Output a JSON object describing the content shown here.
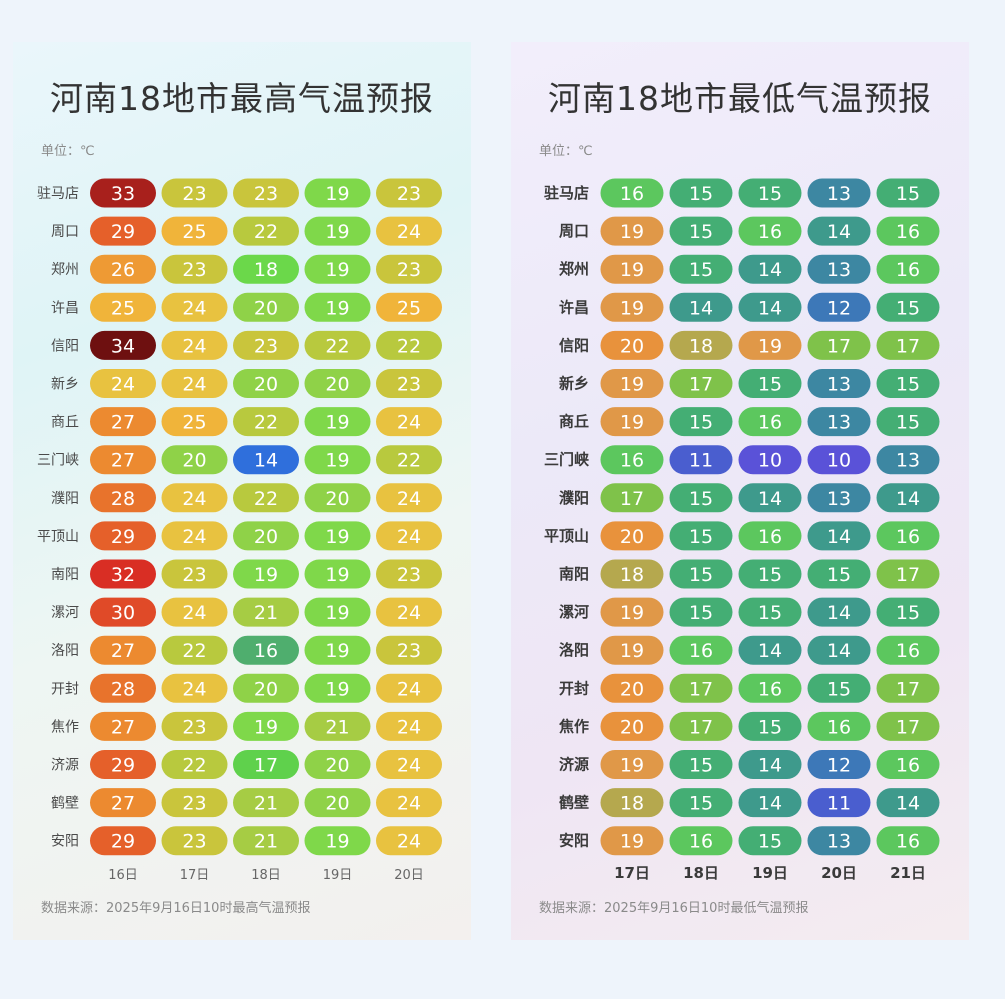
{
  "unit_label": "单位：℃",
  "chart_data": [
    {
      "type": "table",
      "title": "河南18地市最高气温预报",
      "source": "数据来源：2025年9月16日10时最高气温预报",
      "rows": [
        "驻马店",
        "周口",
        "郑州",
        "许昌",
        "信阳",
        "新乡",
        "商丘",
        "三门峡",
        "濮阳",
        "平顶山",
        "南阳",
        "漯河",
        "洛阳",
        "开封",
        "焦作",
        "济源",
        "鹤壁",
        "安阳"
      ],
      "columns": [
        "16日",
        "17日",
        "18日",
        "19日",
        "20日"
      ],
      "values": [
        [
          33,
          23,
          23,
          19,
          23
        ],
        [
          29,
          25,
          22,
          19,
          24
        ],
        [
          26,
          23,
          18,
          19,
          23
        ],
        [
          25,
          24,
          20,
          19,
          25
        ],
        [
          34,
          24,
          23,
          22,
          22
        ],
        [
          24,
          24,
          20,
          20,
          23
        ],
        [
          27,
          25,
          22,
          19,
          24
        ],
        [
          27,
          20,
          14,
          19,
          22
        ],
        [
          28,
          24,
          22,
          20,
          24
        ],
        [
          29,
          24,
          20,
          19,
          24
        ],
        [
          32,
          23,
          19,
          19,
          23
        ],
        [
          30,
          24,
          21,
          19,
          24
        ],
        [
          27,
          22,
          16,
          19,
          23
        ],
        [
          28,
          24,
          20,
          19,
          24
        ],
        [
          27,
          23,
          19,
          21,
          24
        ],
        [
          29,
          22,
          17,
          20,
          24
        ],
        [
          27,
          23,
          21,
          20,
          24
        ],
        [
          29,
          23,
          21,
          19,
          24
        ]
      ],
      "color_scale": {
        "14": "#2f6fdc",
        "16": "#4fae6e",
        "17": "#5fd14c",
        "18": "#6bd84a",
        "19": "#7fd84a",
        "20": "#8fd248",
        "21": "#a6cc44",
        "22": "#b8c93e",
        "23": "#c9c53c",
        "24": "#e8c240",
        "25": "#f0b43a",
        "26": "#ee9a34",
        "27": "#ec8a30",
        "28": "#e8732c",
        "29": "#e5602a",
        "30": "#e04a28",
        "32": "#d92e24",
        "33": "#a8201c",
        "34": "#6e1010"
      }
    },
    {
      "type": "table",
      "title": "河南18地市最低气温预报",
      "source": "数据来源：2025年9月16日10时最低气温预报",
      "rows": [
        "驻马店",
        "周口",
        "郑州",
        "许昌",
        "信阳",
        "新乡",
        "商丘",
        "三门峡",
        "濮阳",
        "平顶山",
        "南阳",
        "漯河",
        "洛阳",
        "开封",
        "焦作",
        "济源",
        "鹤壁",
        "安阳"
      ],
      "columns": [
        "17日",
        "18日",
        "19日",
        "20日",
        "21日"
      ],
      "values": [
        [
          16,
          15,
          15,
          13,
          15
        ],
        [
          19,
          15,
          16,
          14,
          16
        ],
        [
          19,
          15,
          14,
          13,
          16
        ],
        [
          19,
          14,
          14,
          12,
          15
        ],
        [
          20,
          18,
          19,
          17,
          17
        ],
        [
          19,
          17,
          15,
          13,
          15
        ],
        [
          19,
          15,
          16,
          13,
          15
        ],
        [
          16,
          11,
          10,
          10,
          13
        ],
        [
          17,
          15,
          14,
          13,
          14
        ],
        [
          20,
          15,
          16,
          14,
          16
        ],
        [
          18,
          15,
          15,
          15,
          17
        ],
        [
          19,
          15,
          15,
          14,
          15
        ],
        [
          19,
          16,
          14,
          14,
          16
        ],
        [
          20,
          17,
          16,
          15,
          17
        ],
        [
          20,
          17,
          15,
          16,
          17
        ],
        [
          19,
          15,
          14,
          12,
          16
        ],
        [
          18,
          15,
          14,
          11,
          14
        ],
        [
          19,
          16,
          15,
          13,
          16
        ]
      ],
      "color_scale": {
        "10": "#5a52d8",
        "11": "#4a5ecf",
        "12": "#3d78b8",
        "13": "#3d87a2",
        "14": "#3e9a8c",
        "15": "#44ae74",
        "16": "#5cc75e",
        "17": "#7fc24a",
        "18": "#b5a84e",
        "19": "#e09848",
        "20": "#e8923c"
      }
    }
  ]
}
